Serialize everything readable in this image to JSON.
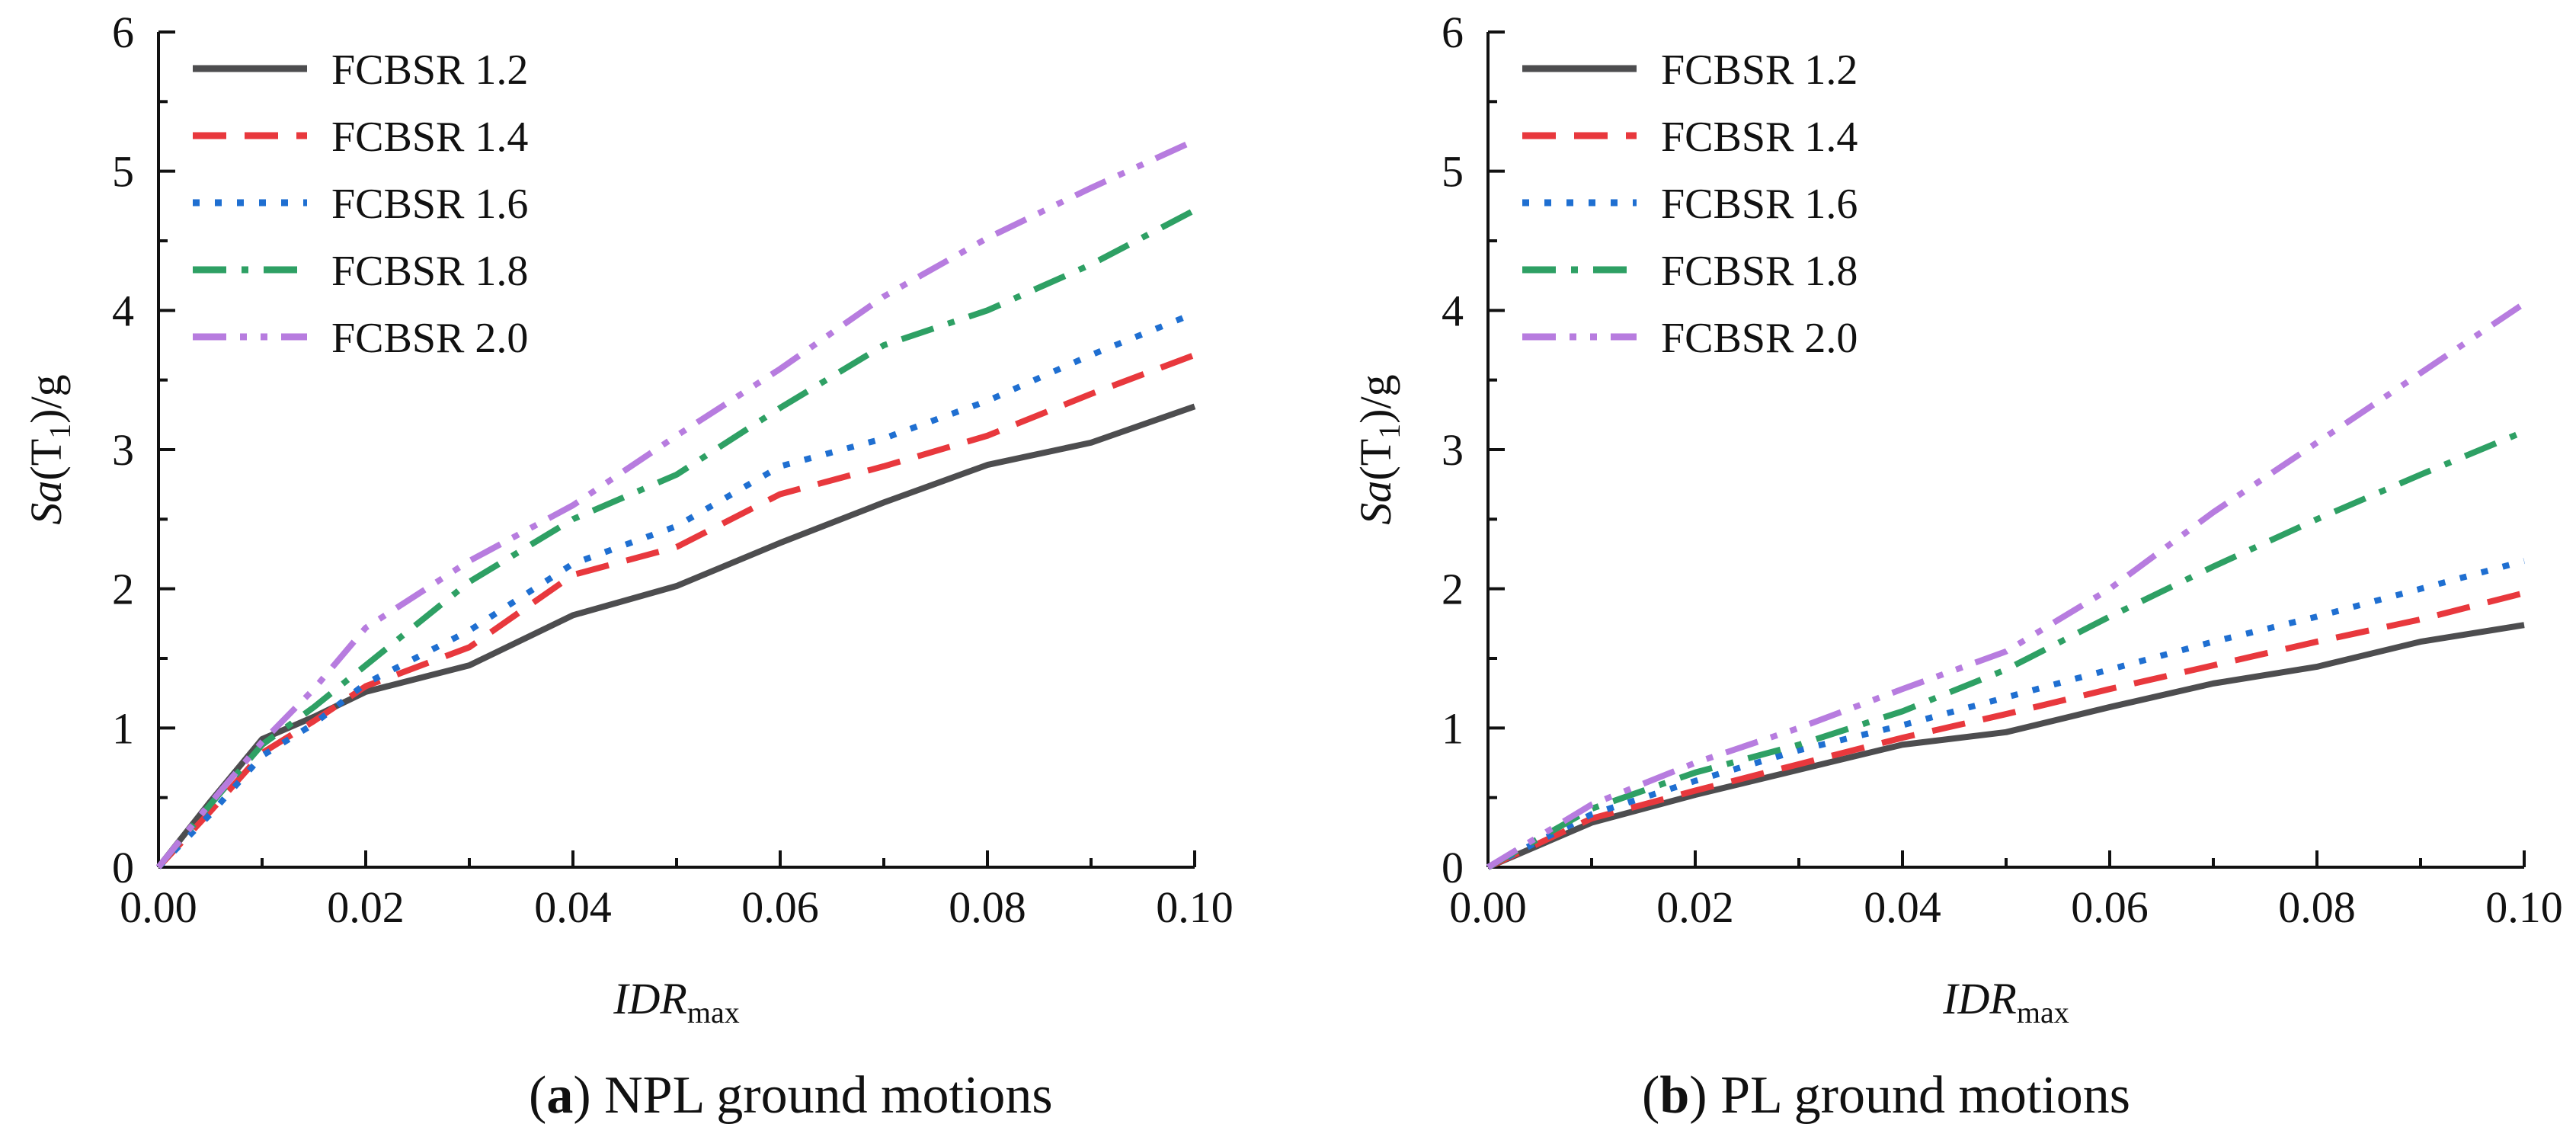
{
  "chart_data": [
    {
      "type": "line",
      "caption_letter": "a",
      "caption_text": "NPL ground motions",
      "xlabel_main": "IDR",
      "xlabel_sub": "max",
      "ylabel_main": "Sa",
      "ylabel_paren_open": "(T",
      "ylabel_sub": "1",
      "ylabel_rest": ")/g",
      "xlim": [
        0,
        0.1
      ],
      "ylim": [
        0,
        6
      ],
      "xticks": [
        "0.00",
        "0.02",
        "0.04",
        "0.06",
        "0.08",
        "0.10"
      ],
      "yticks": [
        "0",
        "1",
        "2",
        "3",
        "4",
        "5",
        "6"
      ],
      "legend": "top-left",
      "series": [
        {
          "name": "FCBSR 1.2",
          "color": "#4d4d4f",
          "style": "solid",
          "x": [
            0,
            0.005,
            0.01,
            0.015,
            0.02,
            0.03,
            0.04,
            0.05,
            0.06,
            0.07,
            0.08,
            0.09,
            0.1
          ],
          "y": [
            0,
            0.47,
            0.92,
            1.08,
            1.26,
            1.45,
            1.81,
            2.02,
            2.33,
            2.62,
            2.89,
            3.05,
            3.31
          ]
        },
        {
          "name": "FCBSR 1.4",
          "color": "#e8383d",
          "style": "dash",
          "x": [
            0,
            0.005,
            0.01,
            0.015,
            0.02,
            0.03,
            0.04,
            0.05,
            0.06,
            0.07,
            0.08,
            0.09,
            0.1
          ],
          "y": [
            0,
            0.4,
            0.82,
            1.05,
            1.3,
            1.58,
            2.1,
            2.3,
            2.68,
            2.88,
            3.1,
            3.4,
            3.68
          ]
        },
        {
          "name": "FCBSR 1.6",
          "color": "#1f6fd1",
          "style": "dot",
          "x": [
            0,
            0.005,
            0.01,
            0.015,
            0.02,
            0.03,
            0.04,
            0.05,
            0.06,
            0.07,
            0.08,
            0.09,
            0.1
          ],
          "y": [
            0,
            0.38,
            0.8,
            1.03,
            1.32,
            1.7,
            2.18,
            2.45,
            2.88,
            3.08,
            3.35,
            3.68,
            3.98
          ]
        },
        {
          "name": "FCBSR 1.8",
          "color": "#2ea064",
          "style": "dashdot",
          "x": [
            0,
            0.005,
            0.01,
            0.015,
            0.02,
            0.03,
            0.04,
            0.05,
            0.06,
            0.07,
            0.08,
            0.09,
            0.1
          ],
          "y": [
            0,
            0.45,
            0.88,
            1.15,
            1.45,
            2.05,
            2.5,
            2.82,
            3.3,
            3.75,
            4.0,
            4.33,
            4.72
          ]
        },
        {
          "name": "FCBSR 2.0",
          "color": "#b77cdf",
          "style": "dashdotdot",
          "x": [
            0,
            0.005,
            0.01,
            0.015,
            0.02,
            0.03,
            0.04,
            0.05,
            0.06,
            0.07,
            0.08,
            0.09,
            0.1
          ],
          "y": [
            0,
            0.46,
            0.9,
            1.28,
            1.72,
            2.2,
            2.6,
            3.1,
            3.58,
            4.1,
            4.52,
            4.88,
            5.22
          ]
        }
      ]
    },
    {
      "type": "line",
      "caption_letter": "b",
      "caption_text": "PL ground motions",
      "xlabel_main": "IDR",
      "xlabel_sub": "max",
      "ylabel_main": "Sa",
      "ylabel_paren_open": "(T",
      "ylabel_sub": "1",
      "ylabel_rest": ")/g",
      "xlim": [
        0,
        0.1
      ],
      "ylim": [
        0,
        6
      ],
      "xticks": [
        "0.00",
        "0.02",
        "0.04",
        "0.06",
        "0.08",
        "0.10"
      ],
      "yticks": [
        "0",
        "1",
        "2",
        "3",
        "4",
        "5",
        "6"
      ],
      "legend": "top-left",
      "series": [
        {
          "name": "FCBSR 1.2",
          "color": "#4d4d4f",
          "style": "solid",
          "x": [
            0,
            0.01,
            0.02,
            0.03,
            0.04,
            0.05,
            0.06,
            0.07,
            0.08,
            0.09,
            0.1
          ],
          "y": [
            0,
            0.32,
            0.52,
            0.7,
            0.88,
            0.97,
            1.15,
            1.32,
            1.44,
            1.62,
            1.74
          ]
        },
        {
          "name": "FCBSR 1.4",
          "color": "#e8383d",
          "style": "dash",
          "x": [
            0,
            0.01,
            0.02,
            0.03,
            0.04,
            0.05,
            0.06,
            0.07,
            0.08,
            0.09,
            0.1
          ],
          "y": [
            0,
            0.35,
            0.55,
            0.74,
            0.93,
            1.1,
            1.28,
            1.45,
            1.62,
            1.78,
            1.97
          ]
        },
        {
          "name": "FCBSR 1.6",
          "color": "#1f6fd1",
          "style": "dot",
          "x": [
            0,
            0.01,
            0.02,
            0.03,
            0.04,
            0.05,
            0.06,
            0.07,
            0.08,
            0.09,
            0.1
          ],
          "y": [
            0,
            0.38,
            0.62,
            0.84,
            1.02,
            1.22,
            1.42,
            1.62,
            1.8,
            2.0,
            2.2
          ]
        },
        {
          "name": "FCBSR 1.8",
          "color": "#2ea064",
          "style": "dashdot",
          "x": [
            0,
            0.01,
            0.02,
            0.03,
            0.04,
            0.05,
            0.06,
            0.07,
            0.08,
            0.09,
            0.1
          ],
          "y": [
            0,
            0.42,
            0.68,
            0.88,
            1.12,
            1.42,
            1.8,
            2.16,
            2.5,
            2.82,
            3.13
          ]
        },
        {
          "name": "FCBSR 2.0",
          "color": "#b77cdf",
          "style": "dashdotdot",
          "x": [
            0,
            0.01,
            0.02,
            0.03,
            0.04,
            0.05,
            0.06,
            0.07,
            0.08,
            0.09,
            0.1
          ],
          "y": [
            0,
            0.45,
            0.75,
            1.0,
            1.28,
            1.55,
            2.0,
            2.55,
            3.05,
            3.55,
            4.05
          ]
        }
      ]
    }
  ]
}
